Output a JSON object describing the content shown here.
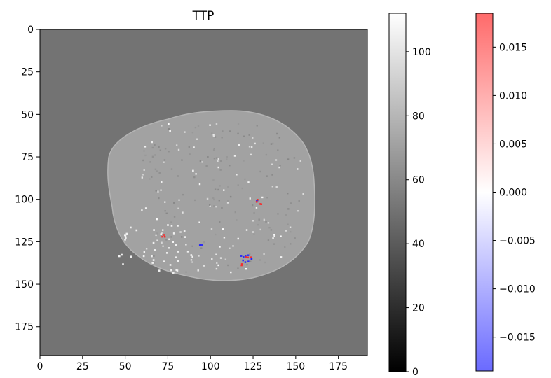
{
  "chart_data": [
    {
      "type": "heatmap",
      "title": "TTP",
      "xlabel": "",
      "ylabel": "",
      "x_ticks": [
        "0",
        "25",
        "50",
        "75",
        "100",
        "125",
        "150",
        "175"
      ],
      "y_ticks": [
        "0",
        "25",
        "50",
        "75",
        "100",
        "125",
        "150",
        "175"
      ],
      "xlim": [
        0,
        192
      ],
      "ylim": [
        192,
        0
      ],
      "background_value": 55,
      "brain_region": {
        "shape": "ellipse",
        "x_range": [
          39,
          161
        ],
        "y_range": [
          48,
          147
        ],
        "typical_value": 70
      },
      "overlay_clusters": [
        {
          "x": 121,
          "y": 135,
          "sign": "mixed"
        },
        {
          "x": 128,
          "y": 101,
          "sign": "mixed"
        },
        {
          "x": 72,
          "y": 121,
          "sign": "positive"
        },
        {
          "x": 94,
          "y": 127,
          "sign": "negative"
        }
      ],
      "colormap": "gray"
    },
    {
      "type": "colorbar",
      "colormap": "gray",
      "range": [
        0,
        112
      ],
      "ticks": [
        "0",
        "20",
        "40",
        "60",
        "80",
        "100"
      ],
      "tick_values": [
        0,
        20,
        40,
        60,
        80,
        100
      ]
    },
    {
      "type": "colorbar",
      "colormap": "bwr",
      "range": [
        -0.0185,
        0.0185
      ],
      "ticks": [
        "−0.015",
        "−0.010",
        "−0.005",
        "0.000",
        "0.005",
        "0.010",
        "0.015"
      ],
      "tick_values": [
        -0.015,
        -0.01,
        -0.005,
        0.0,
        0.005,
        0.01,
        0.015
      ]
    }
  ],
  "colors": {
    "background_gray": "#737373",
    "brain_gray": "#a2a2a2",
    "positive": "#ff2020",
    "negative": "#2020ff"
  }
}
